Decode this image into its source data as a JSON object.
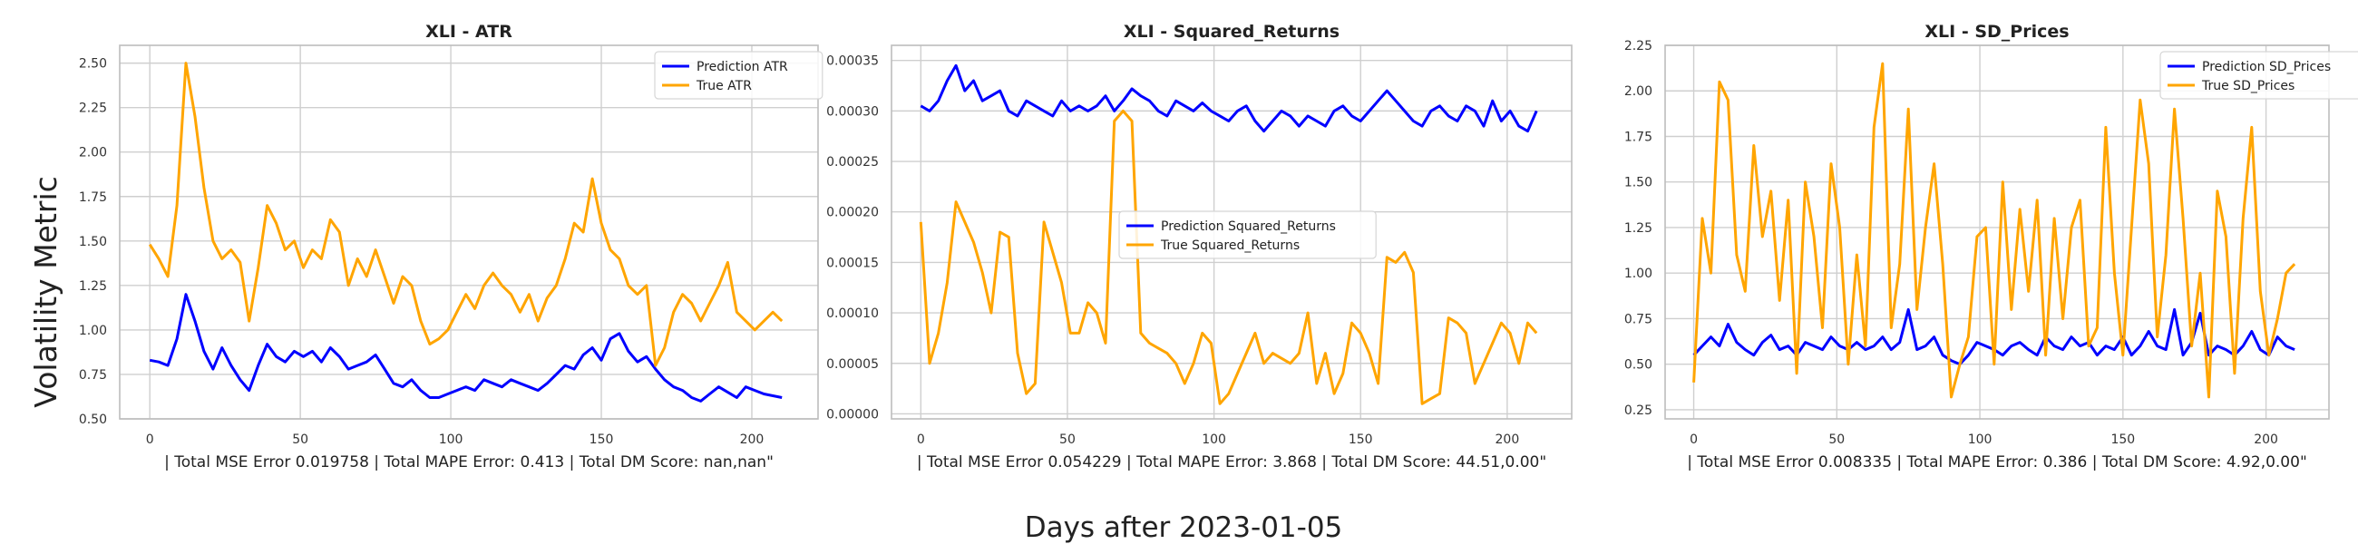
{
  "figure": {
    "supylabel": "Volatility Metric",
    "supxlabel": "Days after 2023-01-05"
  },
  "chart_data": [
    {
      "type": "line",
      "title": "XLI - ATR",
      "xlabel": "| Total MSE Error 0.019758 | Total MAPE Error: 0.413 | Total DM Score: nan,nan\"",
      "xlim": [
        -10,
        222
      ],
      "ylim": [
        0.5,
        2.6
      ],
      "xticks": [
        0,
        50,
        100,
        150,
        200
      ],
      "yticks": [
        0.5,
        0.75,
        1.0,
        1.25,
        1.5,
        1.75,
        2.0,
        2.25,
        2.5
      ],
      "ytick_labels": [
        "0.50",
        "0.75",
        "1.00",
        "1.25",
        "1.50",
        "1.75",
        "2.00",
        "2.25",
        "2.50"
      ],
      "grid": true,
      "legend_position": "top-right",
      "series": [
        {
          "name": "Prediction ATR",
          "color": "#0000ff",
          "x": [
            0,
            3,
            6,
            9,
            12,
            15,
            18,
            21,
            24,
            27,
            30,
            33,
            36,
            39,
            42,
            45,
            48,
            51,
            54,
            57,
            60,
            63,
            66,
            69,
            72,
            75,
            78,
            81,
            84,
            87,
            90,
            93,
            96,
            99,
            102,
            105,
            108,
            111,
            114,
            117,
            120,
            123,
            126,
            129,
            132,
            135,
            138,
            141,
            144,
            147,
            150,
            153,
            156,
            159,
            162,
            165,
            168,
            171,
            174,
            177,
            180,
            183,
            186,
            189,
            192,
            195,
            198,
            201,
            204,
            207,
            210
          ],
          "y": [
            0.83,
            0.82,
            0.8,
            0.95,
            1.2,
            1.05,
            0.88,
            0.78,
            0.9,
            0.8,
            0.72,
            0.66,
            0.8,
            0.92,
            0.85,
            0.82,
            0.88,
            0.85,
            0.88,
            0.82,
            0.9,
            0.85,
            0.78,
            0.8,
            0.82,
            0.86,
            0.78,
            0.7,
            0.68,
            0.72,
            0.66,
            0.62,
            0.62,
            0.64,
            0.66,
            0.68,
            0.66,
            0.72,
            0.7,
            0.68,
            0.72,
            0.7,
            0.68,
            0.66,
            0.7,
            0.75,
            0.8,
            0.78,
            0.86,
            0.9,
            0.83,
            0.95,
            0.98,
            0.88,
            0.82,
            0.85,
            0.78,
            0.72,
            0.68,
            0.66,
            0.62,
            0.6,
            0.64,
            0.68,
            0.65,
            0.62,
            0.68,
            0.66,
            0.64,
            0.63,
            0.62
          ]
        },
        {
          "name": "True ATR",
          "color": "#ffa500",
          "x": [
            0,
            3,
            6,
            9,
            12,
            15,
            18,
            21,
            24,
            27,
            30,
            33,
            36,
            39,
            42,
            45,
            48,
            51,
            54,
            57,
            60,
            63,
            66,
            69,
            72,
            75,
            78,
            81,
            84,
            87,
            90,
            93,
            96,
            99,
            102,
            105,
            108,
            111,
            114,
            117,
            120,
            123,
            126,
            129,
            132,
            135,
            138,
            141,
            144,
            147,
            150,
            153,
            156,
            159,
            162,
            165,
            168,
            171,
            174,
            177,
            180,
            183,
            186,
            189,
            192,
            195,
            198,
            201,
            204,
            207,
            210
          ],
          "y": [
            1.48,
            1.4,
            1.3,
            1.7,
            2.5,
            2.2,
            1.8,
            1.5,
            1.4,
            1.45,
            1.38,
            1.05,
            1.35,
            1.7,
            1.6,
            1.45,
            1.5,
            1.35,
            1.45,
            1.4,
            1.62,
            1.55,
            1.25,
            1.4,
            1.3,
            1.45,
            1.3,
            1.15,
            1.3,
            1.25,
            1.05,
            0.92,
            0.95,
            1.0,
            1.1,
            1.2,
            1.12,
            1.25,
            1.32,
            1.25,
            1.2,
            1.1,
            1.2,
            1.05,
            1.18,
            1.25,
            1.4,
            1.6,
            1.55,
            1.85,
            1.6,
            1.45,
            1.4,
            1.25,
            1.2,
            1.25,
            0.8,
            0.9,
            1.1,
            1.2,
            1.15,
            1.05,
            1.15,
            1.25,
            1.38,
            1.1,
            1.05,
            1.0,
            1.05,
            1.1,
            1.05
          ]
        }
      ]
    },
    {
      "type": "line",
      "title": "XLI - Squared_Returns",
      "xlabel": "| Total MSE Error 0.054229 | Total MAPE Error: 3.868 | Total DM Score: 44.51,0.00\"",
      "xlim": [
        -10,
        222
      ],
      "ylim": [
        -5e-06,
        0.000365
      ],
      "xticks": [
        0,
        50,
        100,
        150,
        200
      ],
      "yticks": [
        0,
        5e-05,
        0.0001,
        0.00015,
        0.0002,
        0.00025,
        0.0003,
        0.00035
      ],
      "ytick_labels": [
        "0.00000",
        "0.00005",
        "0.00010",
        "0.00015",
        "0.00020",
        "0.00025",
        "0.00030",
        "0.00035"
      ],
      "grid": true,
      "legend_position": "center",
      "series": [
        {
          "name": "Prediction Squared_Returns",
          "color": "#0000ff",
          "x": [
            0,
            3,
            6,
            9,
            12,
            15,
            18,
            21,
            24,
            27,
            30,
            33,
            36,
            39,
            42,
            45,
            48,
            51,
            54,
            57,
            60,
            63,
            66,
            69,
            72,
            75,
            78,
            81,
            84,
            87,
            90,
            93,
            96,
            99,
            102,
            105,
            108,
            111,
            114,
            117,
            120,
            123,
            126,
            129,
            132,
            135,
            138,
            141,
            144,
            147,
            150,
            153,
            156,
            159,
            162,
            165,
            168,
            171,
            174,
            177,
            180,
            183,
            186,
            189,
            192,
            195,
            198,
            201,
            204,
            207,
            210
          ],
          "y": [
            0.000305,
            0.0003,
            0.00031,
            0.00033,
            0.000345,
            0.00032,
            0.00033,
            0.00031,
            0.000315,
            0.00032,
            0.0003,
            0.000295,
            0.00031,
            0.000305,
            0.0003,
            0.000295,
            0.00031,
            0.0003,
            0.000305,
            0.0003,
            0.000305,
            0.000315,
            0.0003,
            0.00031,
            0.000322,
            0.000315,
            0.00031,
            0.0003,
            0.000295,
            0.00031,
            0.000305,
            0.0003,
            0.000308,
            0.0003,
            0.000295,
            0.00029,
            0.0003,
            0.000305,
            0.00029,
            0.00028,
            0.00029,
            0.0003,
            0.000295,
            0.000285,
            0.000295,
            0.00029,
            0.000285,
            0.0003,
            0.000305,
            0.000295,
            0.00029,
            0.0003,
            0.00031,
            0.00032,
            0.00031,
            0.0003,
            0.00029,
            0.000285,
            0.0003,
            0.000305,
            0.000295,
            0.00029,
            0.000305,
            0.0003,
            0.000285,
            0.00031,
            0.00029,
            0.0003,
            0.000285,
            0.00028,
            0.0003
          ]
        },
        {
          "name": "True Squared_Returns",
          "color": "#ffa500",
          "x": [
            0,
            3,
            6,
            9,
            12,
            15,
            18,
            21,
            24,
            27,
            30,
            33,
            36,
            39,
            42,
            45,
            48,
            51,
            54,
            57,
            60,
            63,
            66,
            69,
            72,
            75,
            78,
            81,
            84,
            87,
            90,
            93,
            96,
            99,
            102,
            105,
            108,
            111,
            114,
            117,
            120,
            123,
            126,
            129,
            132,
            135,
            138,
            141,
            144,
            147,
            150,
            153,
            156,
            159,
            162,
            165,
            168,
            171,
            174,
            177,
            180,
            183,
            186,
            189,
            192,
            195,
            198,
            201,
            204,
            207,
            210
          ],
          "y": [
            0.00019,
            5e-05,
            8e-05,
            0.00013,
            0.00021,
            0.00019,
            0.00017,
            0.00014,
            0.0001,
            0.00018,
            0.000175,
            6e-05,
            2e-05,
            3e-05,
            0.00019,
            0.00016,
            0.00013,
            8e-05,
            8e-05,
            0.00011,
            0.0001,
            7e-05,
            0.00029,
            0.0003,
            0.00029,
            8e-05,
            7e-05,
            6.5e-05,
            6e-05,
            5e-05,
            3e-05,
            5e-05,
            8e-05,
            7e-05,
            1e-05,
            2e-05,
            4e-05,
            6e-05,
            8e-05,
            5e-05,
            6e-05,
            5.5e-05,
            5e-05,
            6e-05,
            0.0001,
            3e-05,
            6e-05,
            2e-05,
            4e-05,
            9e-05,
            8e-05,
            6e-05,
            3e-05,
            0.000155,
            0.00015,
            0.00016,
            0.00014,
            1e-05,
            1.5e-05,
            2e-05,
            9.5e-05,
            9e-05,
            8e-05,
            3e-05,
            5e-05,
            7e-05,
            9e-05,
            8e-05,
            5e-05,
            9e-05,
            8e-05
          ]
        }
      ]
    },
    {
      "type": "line",
      "title": "XLI - SD_Prices",
      "xlabel": "| Total MSE Error 0.008335 | Total MAPE Error: 0.386 | Total DM Score: 4.92,0.00\"",
      "xlim": [
        -10,
        222
      ],
      "ylim": [
        0.2,
        2.25
      ],
      "xticks": [
        0,
        50,
        100,
        150,
        200
      ],
      "yticks": [
        0.25,
        0.5,
        0.75,
        1.0,
        1.25,
        1.5,
        1.75,
        2.0,
        2.25
      ],
      "ytick_labels": [
        "0.25",
        "0.50",
        "0.75",
        "1.00",
        "1.25",
        "1.50",
        "1.75",
        "2.00",
        "2.25"
      ],
      "grid": true,
      "legend_position": "top-right",
      "series": [
        {
          "name": "Prediction SD_Prices",
          "color": "#0000ff",
          "x": [
            0,
            3,
            6,
            9,
            12,
            15,
            18,
            21,
            24,
            27,
            30,
            33,
            36,
            39,
            42,
            45,
            48,
            51,
            54,
            57,
            60,
            63,
            66,
            69,
            72,
            75,
            78,
            81,
            84,
            87,
            90,
            93,
            96,
            99,
            102,
            105,
            108,
            111,
            114,
            117,
            120,
            123,
            126,
            129,
            132,
            135,
            138,
            141,
            144,
            147,
            150,
            153,
            156,
            159,
            162,
            165,
            168,
            171,
            174,
            177,
            180,
            183,
            186,
            189,
            192,
            195,
            198,
            201,
            204,
            207,
            210
          ],
          "y": [
            0.55,
            0.6,
            0.65,
            0.6,
            0.72,
            0.62,
            0.58,
            0.55,
            0.62,
            0.66,
            0.58,
            0.6,
            0.55,
            0.62,
            0.6,
            0.58,
            0.65,
            0.6,
            0.58,
            0.62,
            0.58,
            0.6,
            0.65,
            0.58,
            0.62,
            0.8,
            0.58,
            0.6,
            0.65,
            0.55,
            0.52,
            0.5,
            0.55,
            0.62,
            0.6,
            0.58,
            0.55,
            0.6,
            0.62,
            0.58,
            0.55,
            0.65,
            0.6,
            0.58,
            0.65,
            0.6,
            0.62,
            0.55,
            0.6,
            0.58,
            0.65,
            0.55,
            0.6,
            0.68,
            0.6,
            0.58,
            0.8,
            0.55,
            0.62,
            0.78,
            0.55,
            0.6,
            0.58,
            0.55,
            0.6,
            0.68,
            0.58,
            0.55,
            0.65,
            0.6,
            0.58
          ]
        },
        {
          "name": "True SD_Prices",
          "color": "#ffa500",
          "x": [
            0,
            3,
            6,
            9,
            12,
            15,
            18,
            21,
            24,
            27,
            30,
            33,
            36,
            39,
            42,
            45,
            48,
            51,
            54,
            57,
            60,
            63,
            66,
            69,
            72,
            75,
            78,
            81,
            84,
            87,
            90,
            93,
            96,
            99,
            102,
            105,
            108,
            111,
            114,
            117,
            120,
            123,
            126,
            129,
            132,
            135,
            138,
            141,
            144,
            147,
            150,
            153,
            156,
            159,
            162,
            165,
            168,
            171,
            174,
            177,
            180,
            183,
            186,
            189,
            192,
            195,
            198,
            201,
            204,
            207,
            210
          ],
          "y": [
            0.4,
            1.3,
            1.0,
            2.05,
            1.95,
            1.1,
            0.9,
            1.7,
            1.2,
            1.45,
            0.85,
            1.4,
            0.45,
            1.5,
            1.2,
            0.7,
            1.6,
            1.25,
            0.5,
            1.1,
            0.6,
            1.8,
            2.15,
            0.7,
            1.05,
            1.9,
            0.8,
            1.25,
            1.6,
            1.05,
            0.32,
            0.5,
            0.65,
            1.2,
            1.25,
            0.5,
            1.5,
            0.8,
            1.35,
            0.9,
            1.4,
            0.55,
            1.3,
            0.75,
            1.25,
            1.4,
            0.6,
            0.7,
            1.8,
            1.0,
            0.55,
            1.25,
            1.95,
            1.6,
            0.65,
            1.1,
            1.9,
            1.3,
            0.6,
            1.0,
            0.32,
            1.45,
            1.2,
            0.45,
            1.3,
            1.8,
            0.9,
            0.55,
            0.75,
            1.0,
            1.05
          ]
        }
      ]
    }
  ]
}
